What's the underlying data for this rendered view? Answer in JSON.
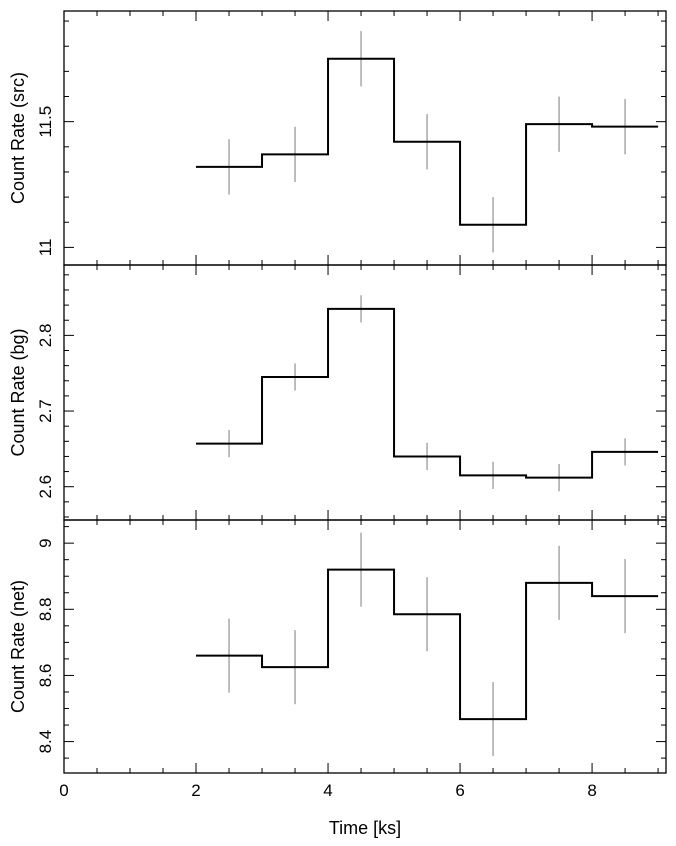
{
  "chart_data": [
    {
      "type": "step-line",
      "ylabel": "Count Rate (src)",
      "ylim": [
        10.93,
        11.94
      ],
      "yticks_major": [
        11,
        11.5
      ],
      "ytick_labels": [
        "11",
        "11.5"
      ],
      "yticks_minor_step": 0.1,
      "bin_edges": [
        2,
        3,
        4,
        5,
        6,
        7,
        8,
        9
      ],
      "x": [
        2.5,
        3.5,
        4.5,
        5.5,
        6.5,
        7.5,
        8.5
      ],
      "values": [
        11.32,
        11.37,
        11.75,
        11.42,
        11.09,
        11.49,
        11.48
      ],
      "errors": [
        0.11,
        0.11,
        0.11,
        0.11,
        0.11,
        0.11,
        0.11
      ]
    },
    {
      "type": "step-line",
      "ylabel": "Count Rate (bg)",
      "ylim": [
        2.556,
        2.893
      ],
      "yticks_major": [
        2.6,
        2.7,
        2.8
      ],
      "ytick_labels": [
        "2.6",
        "2.7",
        "2.8"
      ],
      "yticks_minor_step": 0.02,
      "bin_edges": [
        2,
        3,
        4,
        5,
        6,
        7,
        8,
        9
      ],
      "x": [
        2.5,
        3.5,
        4.5,
        5.5,
        6.5,
        7.5,
        8.5
      ],
      "values": [
        2.657,
        2.745,
        2.835,
        2.64,
        2.615,
        2.612,
        2.646
      ],
      "errors": [
        0.018,
        0.018,
        0.018,
        0.018,
        0.018,
        0.018,
        0.018
      ]
    },
    {
      "type": "step-line",
      "ylabel": "Count Rate (net)",
      "ylim": [
        8.305,
        9.07
      ],
      "yticks_major": [
        8.4,
        8.6,
        8.8,
        9
      ],
      "ytick_labels": [
        "8.4",
        "8.6",
        "8.8",
        "9"
      ],
      "yticks_minor_step": 0.05,
      "bin_edges": [
        2,
        3,
        4,
        5,
        6,
        7,
        8,
        9
      ],
      "x": [
        2.5,
        3.5,
        4.5,
        5.5,
        6.5,
        7.5,
        8.5
      ],
      "values": [
        8.66,
        8.625,
        8.92,
        8.785,
        8.468,
        8.88,
        8.84
      ],
      "errors": [
        0.112,
        0.112,
        0.112,
        0.112,
        0.112,
        0.112,
        0.112
      ]
    }
  ],
  "xaxis": {
    "xlabel": "Time [ks]",
    "xlim": [
      0,
      9.12
    ],
    "ticks_major": [
      0,
      2,
      4,
      6,
      8
    ],
    "tick_labels": [
      "0",
      "2",
      "4",
      "6",
      "8"
    ],
    "minor_step": 0.5
  },
  "colors": {
    "step": "#000000",
    "error_bar": "#9a9a9a",
    "frame": "#000000"
  }
}
